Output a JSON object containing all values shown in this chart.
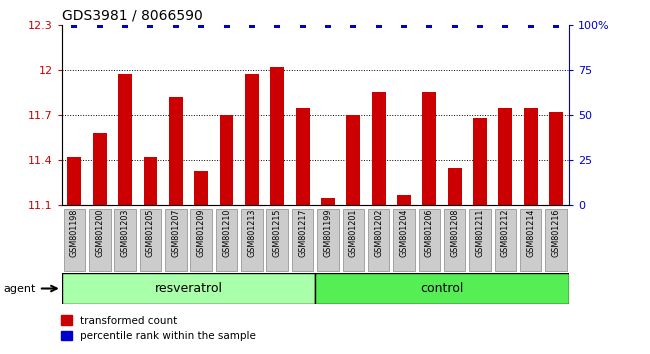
{
  "title": "GDS3981 / 8066590",
  "categories": [
    "GSM801198",
    "GSM801200",
    "GSM801203",
    "GSM801205",
    "GSM801207",
    "GSM801209",
    "GSM801210",
    "GSM801213",
    "GSM801215",
    "GSM801217",
    "GSM801199",
    "GSM801201",
    "GSM801202",
    "GSM801204",
    "GSM801206",
    "GSM801208",
    "GSM801211",
    "GSM801212",
    "GSM801214",
    "GSM801216"
  ],
  "bar_values": [
    11.42,
    11.58,
    11.97,
    11.42,
    11.82,
    11.33,
    11.7,
    11.97,
    12.02,
    11.75,
    11.15,
    11.7,
    11.85,
    11.17,
    11.85,
    11.35,
    11.68,
    11.75,
    11.75,
    11.72
  ],
  "percentile_values": [
    100,
    100,
    100,
    100,
    100,
    100,
    100,
    100,
    100,
    100,
    100,
    100,
    100,
    100,
    100,
    100,
    100,
    100,
    100,
    100
  ],
  "bar_color": "#cc0000",
  "percentile_color": "#0000cc",
  "ylim": [
    11.1,
    12.3
  ],
  "yticks": [
    11.1,
    11.4,
    11.7,
    12.0,
    12.3
  ],
  "ytick_labels": [
    "11.1",
    "11.4",
    "11.7",
    "12",
    "12.3"
  ],
  "y2lim": [
    0,
    100
  ],
  "y2ticks": [
    0,
    25,
    50,
    75,
    100
  ],
  "y2ticklabels": [
    "0",
    "25",
    "50",
    "75",
    "100%"
  ],
  "group1_label": "resveratrol",
  "group2_label": "control",
  "group1_count": 10,
  "group2_count": 10,
  "group1_color": "#aaffaa",
  "group2_color": "#55ee55",
  "agent_label": "agent",
  "legend_bar_label": "transformed count",
  "legend_pct_label": "percentile rank within the sample",
  "bar_width": 0.55,
  "tick_label_bg": "#cccccc"
}
